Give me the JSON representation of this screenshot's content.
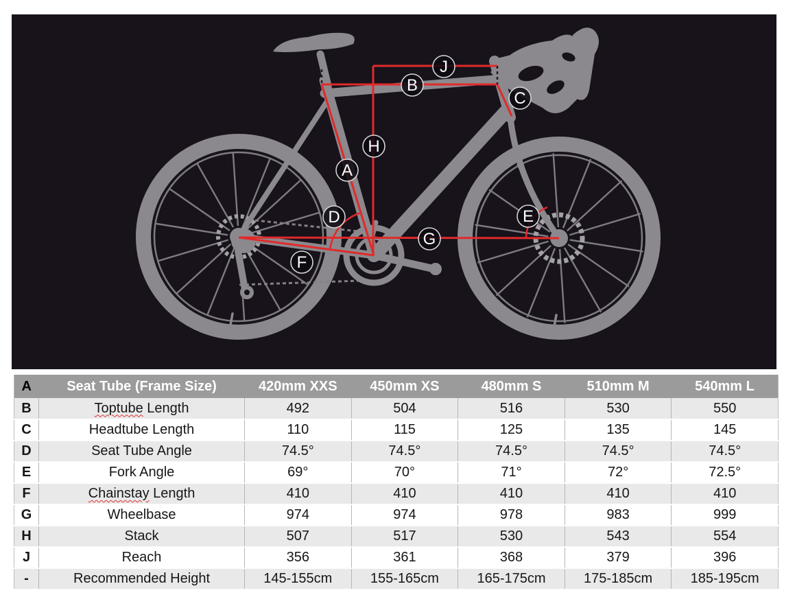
{
  "diagram": {
    "background_color": "#18121b",
    "bike_color": "#8b898e",
    "measure_line_color": "#e02a2a",
    "labels": [
      {
        "letter": "A"
      },
      {
        "letter": "B"
      },
      {
        "letter": "C"
      },
      {
        "letter": "D"
      },
      {
        "letter": "E"
      },
      {
        "letter": "F"
      },
      {
        "letter": "G"
      },
      {
        "letter": "H"
      },
      {
        "letter": "J"
      }
    ]
  },
  "table": {
    "header": {
      "letter": "A",
      "label": "Seat Tube (Frame Size)",
      "sizes": [
        "420mm XXS",
        "450mm XS",
        "480mm S",
        "510mm M",
        "540mm L"
      ]
    },
    "rows": [
      {
        "letter": "B",
        "label": "Toptube Length",
        "underline": true,
        "values": [
          "492",
          "504",
          "516",
          "530",
          "550"
        ]
      },
      {
        "letter": "C",
        "label": "Headtube Length",
        "underline": false,
        "values": [
          "110",
          "115",
          "125",
          "135",
          "145"
        ]
      },
      {
        "letter": "D",
        "label": "Seat Tube Angle",
        "underline": false,
        "values": [
          "74.5°",
          "74.5°",
          "74.5°",
          "74.5°",
          "74.5°"
        ]
      },
      {
        "letter": "E",
        "label": "Fork Angle",
        "underline": false,
        "values": [
          "69°",
          "70°",
          "71°",
          "72°",
          "72.5°"
        ]
      },
      {
        "letter": "F",
        "label": "Chainstay Length",
        "underline": true,
        "values": [
          "410",
          "410",
          "410",
          "410",
          "410"
        ]
      },
      {
        "letter": "G",
        "label": "Wheelbase",
        "underline": false,
        "values": [
          "974",
          "974",
          "978",
          "983",
          "999"
        ]
      },
      {
        "letter": "H",
        "label": "Stack",
        "underline": false,
        "values": [
          "507",
          "517",
          "530",
          "543",
          "554"
        ]
      },
      {
        "letter": "J",
        "label": "Reach",
        "underline": false,
        "values": [
          "356",
          "361",
          "368",
          "379",
          "396"
        ]
      },
      {
        "letter": "-",
        "label": "Recommended Height",
        "underline": false,
        "values": [
          "145-155cm",
          "155-165cm",
          "165-175cm",
          "175-185cm",
          "185-195cm"
        ]
      }
    ]
  }
}
